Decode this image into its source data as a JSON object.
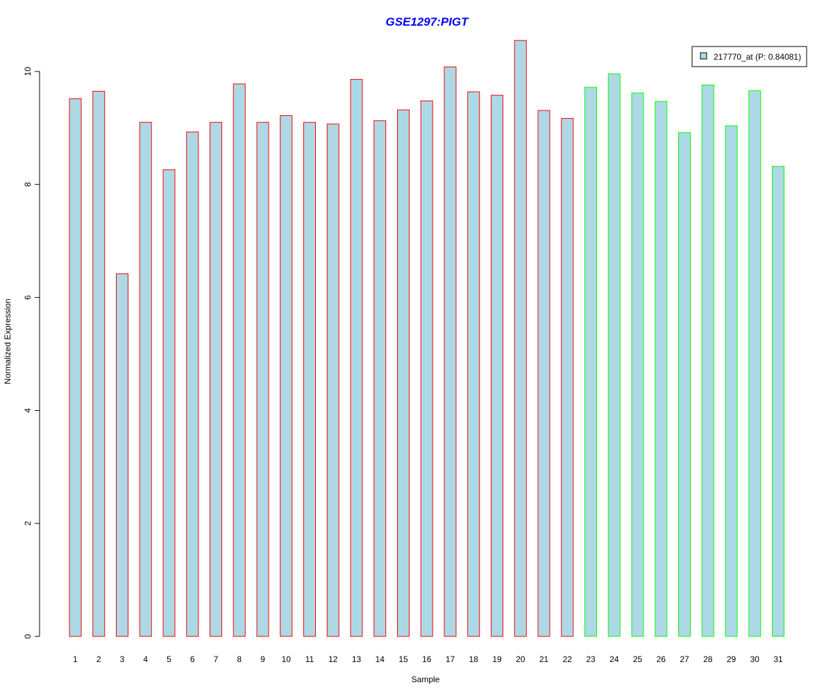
{
  "chart_data": {
    "type": "bar",
    "title": "GSE1297:PIGT",
    "xlabel": "Sample",
    "ylabel": "Normalized Expression",
    "categories": [
      "1",
      "2",
      "3",
      "4",
      "5",
      "6",
      "7",
      "8",
      "9",
      "10",
      "11",
      "12",
      "13",
      "14",
      "15",
      "16",
      "17",
      "18",
      "19",
      "20",
      "21",
      "22",
      "23",
      "24",
      "25",
      "26",
      "27",
      "28",
      "29",
      "30",
      "31"
    ],
    "series": [
      {
        "name": "217770_at (P: 0.84081)",
        "values": [
          9.52,
          9.65,
          6.42,
          9.1,
          8.26,
          8.93,
          9.1,
          9.78,
          9.1,
          9.22,
          9.1,
          9.07,
          9.86,
          9.13,
          9.32,
          9.48,
          10.08,
          9.64,
          9.58,
          10.55,
          9.31,
          9.17,
          9.72,
          9.96,
          9.62,
          9.47,
          8.92,
          9.76,
          9.04,
          9.66,
          8.32
        ]
      }
    ],
    "group_border_colors": [
      "#FF0000",
      "#FF0000",
      "#FF0000",
      "#FF0000",
      "#FF0000",
      "#FF0000",
      "#FF0000",
      "#FF0000",
      "#FF0000",
      "#FF0000",
      "#FF0000",
      "#FF0000",
      "#FF0000",
      "#FF0000",
      "#FF0000",
      "#FF0000",
      "#FF0000",
      "#FF0000",
      "#FF0000",
      "#FF0000",
      "#FF0000",
      "#FF0000",
      "#00FF00",
      "#00FF00",
      "#00FF00",
      "#00FF00",
      "#00FF00",
      "#00FF00",
      "#00FF00",
      "#00FF00",
      "#00FF00"
    ],
    "bar_fill_color": "#ADD8E6",
    "title_color": "#0000FF",
    "yticks": [
      0,
      2,
      4,
      6,
      8,
      10
    ],
    "ylim": [
      0,
      10.55
    ],
    "legend_position": "top-right",
    "grid": false
  }
}
